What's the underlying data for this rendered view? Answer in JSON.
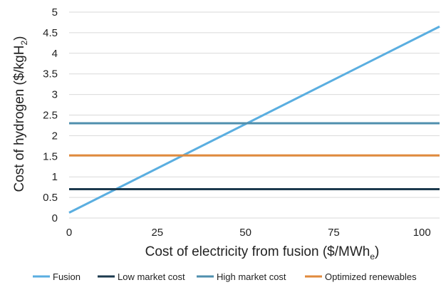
{
  "chart_data": {
    "type": "line",
    "xlabel": "Cost of electricity from fusion ($/MWh",
    "xlabel_sub": "e",
    "xlabel_end": ")",
    "ylabel": "Cost of hydrogen ($/kgH",
    "ylabel_sub": "2",
    "ylabel_end": ")",
    "xlim": [
      0,
      105
    ],
    "ylim": [
      0,
      5
    ],
    "x_ticks": [
      "0",
      "25",
      "50",
      "75",
      "100"
    ],
    "y_ticks": [
      "0",
      "0.5",
      "1",
      "1.5",
      "2",
      "2.5",
      "3",
      "3.5",
      "4",
      "4.5",
      "5"
    ],
    "grid": "horizontal",
    "legend_position": "bottom",
    "series": [
      {
        "name": "Fusion",
        "color": "#5aaee0",
        "x": [
          0,
          105
        ],
        "y": [
          0.13,
          4.65
        ]
      },
      {
        "name": "Low market cost",
        "color": "#1c3a4e",
        "x": [
          0,
          105
        ],
        "y": [
          0.7,
          0.7
        ]
      },
      {
        "name": "High market cost",
        "color": "#4f8fae",
        "x": [
          0,
          105
        ],
        "y": [
          2.3,
          2.3
        ]
      },
      {
        "name": "Optimized renewables",
        "color": "#e08a3c",
        "x": [
          0,
          105
        ],
        "y": [
          1.52,
          1.52
        ]
      }
    ]
  }
}
